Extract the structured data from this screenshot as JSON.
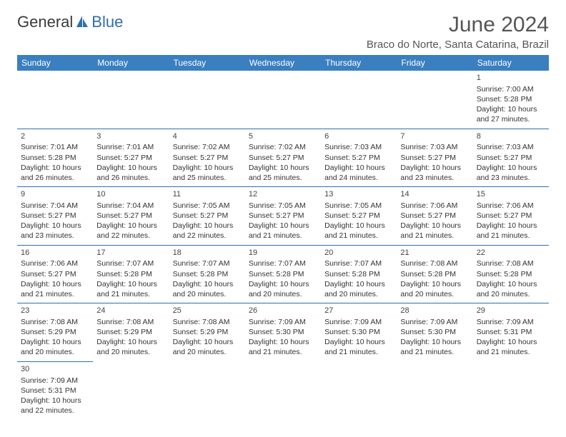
{
  "brand": {
    "part1": "General",
    "part2": "Blue"
  },
  "title": "June 2024",
  "location": "Braco do Norte, Santa Catarina, Brazil",
  "colors": {
    "header_bg": "#3a7fc0",
    "header_text": "#ffffff",
    "divider": "#2e6fb0",
    "text": "#333333",
    "title_text": "#555555",
    "background": "#ffffff"
  },
  "weekdays": [
    "Sunday",
    "Monday",
    "Tuesday",
    "Wednesday",
    "Thursday",
    "Friday",
    "Saturday"
  ],
  "weeks": [
    [
      {
        "day": "",
        "sunrise": "",
        "sunset": "",
        "daylight1": "",
        "daylight2": ""
      },
      {
        "day": "",
        "sunrise": "",
        "sunset": "",
        "daylight1": "",
        "daylight2": ""
      },
      {
        "day": "",
        "sunrise": "",
        "sunset": "",
        "daylight1": "",
        "daylight2": ""
      },
      {
        "day": "",
        "sunrise": "",
        "sunset": "",
        "daylight1": "",
        "daylight2": ""
      },
      {
        "day": "",
        "sunrise": "",
        "sunset": "",
        "daylight1": "",
        "daylight2": ""
      },
      {
        "day": "",
        "sunrise": "",
        "sunset": "",
        "daylight1": "",
        "daylight2": ""
      },
      {
        "day": "1",
        "sunrise": "Sunrise: 7:00 AM",
        "sunset": "Sunset: 5:28 PM",
        "daylight1": "Daylight: 10 hours",
        "daylight2": "and 27 minutes."
      }
    ],
    [
      {
        "day": "2",
        "sunrise": "Sunrise: 7:01 AM",
        "sunset": "Sunset: 5:28 PM",
        "daylight1": "Daylight: 10 hours",
        "daylight2": "and 26 minutes."
      },
      {
        "day": "3",
        "sunrise": "Sunrise: 7:01 AM",
        "sunset": "Sunset: 5:27 PM",
        "daylight1": "Daylight: 10 hours",
        "daylight2": "and 26 minutes."
      },
      {
        "day": "4",
        "sunrise": "Sunrise: 7:02 AM",
        "sunset": "Sunset: 5:27 PM",
        "daylight1": "Daylight: 10 hours",
        "daylight2": "and 25 minutes."
      },
      {
        "day": "5",
        "sunrise": "Sunrise: 7:02 AM",
        "sunset": "Sunset: 5:27 PM",
        "daylight1": "Daylight: 10 hours",
        "daylight2": "and 25 minutes."
      },
      {
        "day": "6",
        "sunrise": "Sunrise: 7:03 AM",
        "sunset": "Sunset: 5:27 PM",
        "daylight1": "Daylight: 10 hours",
        "daylight2": "and 24 minutes."
      },
      {
        "day": "7",
        "sunrise": "Sunrise: 7:03 AM",
        "sunset": "Sunset: 5:27 PM",
        "daylight1": "Daylight: 10 hours",
        "daylight2": "and 23 minutes."
      },
      {
        "day": "8",
        "sunrise": "Sunrise: 7:03 AM",
        "sunset": "Sunset: 5:27 PM",
        "daylight1": "Daylight: 10 hours",
        "daylight2": "and 23 minutes."
      }
    ],
    [
      {
        "day": "9",
        "sunrise": "Sunrise: 7:04 AM",
        "sunset": "Sunset: 5:27 PM",
        "daylight1": "Daylight: 10 hours",
        "daylight2": "and 23 minutes."
      },
      {
        "day": "10",
        "sunrise": "Sunrise: 7:04 AM",
        "sunset": "Sunset: 5:27 PM",
        "daylight1": "Daylight: 10 hours",
        "daylight2": "and 22 minutes."
      },
      {
        "day": "11",
        "sunrise": "Sunrise: 7:05 AM",
        "sunset": "Sunset: 5:27 PM",
        "daylight1": "Daylight: 10 hours",
        "daylight2": "and 22 minutes."
      },
      {
        "day": "12",
        "sunrise": "Sunrise: 7:05 AM",
        "sunset": "Sunset: 5:27 PM",
        "daylight1": "Daylight: 10 hours",
        "daylight2": "and 21 minutes."
      },
      {
        "day": "13",
        "sunrise": "Sunrise: 7:05 AM",
        "sunset": "Sunset: 5:27 PM",
        "daylight1": "Daylight: 10 hours",
        "daylight2": "and 21 minutes."
      },
      {
        "day": "14",
        "sunrise": "Sunrise: 7:06 AM",
        "sunset": "Sunset: 5:27 PM",
        "daylight1": "Daylight: 10 hours",
        "daylight2": "and 21 minutes."
      },
      {
        "day": "15",
        "sunrise": "Sunrise: 7:06 AM",
        "sunset": "Sunset: 5:27 PM",
        "daylight1": "Daylight: 10 hours",
        "daylight2": "and 21 minutes."
      }
    ],
    [
      {
        "day": "16",
        "sunrise": "Sunrise: 7:06 AM",
        "sunset": "Sunset: 5:27 PM",
        "daylight1": "Daylight: 10 hours",
        "daylight2": "and 21 minutes."
      },
      {
        "day": "17",
        "sunrise": "Sunrise: 7:07 AM",
        "sunset": "Sunset: 5:28 PM",
        "daylight1": "Daylight: 10 hours",
        "daylight2": "and 21 minutes."
      },
      {
        "day": "18",
        "sunrise": "Sunrise: 7:07 AM",
        "sunset": "Sunset: 5:28 PM",
        "daylight1": "Daylight: 10 hours",
        "daylight2": "and 20 minutes."
      },
      {
        "day": "19",
        "sunrise": "Sunrise: 7:07 AM",
        "sunset": "Sunset: 5:28 PM",
        "daylight1": "Daylight: 10 hours",
        "daylight2": "and 20 minutes."
      },
      {
        "day": "20",
        "sunrise": "Sunrise: 7:07 AM",
        "sunset": "Sunset: 5:28 PM",
        "daylight1": "Daylight: 10 hours",
        "daylight2": "and 20 minutes."
      },
      {
        "day": "21",
        "sunrise": "Sunrise: 7:08 AM",
        "sunset": "Sunset: 5:28 PM",
        "daylight1": "Daylight: 10 hours",
        "daylight2": "and 20 minutes."
      },
      {
        "day": "22",
        "sunrise": "Sunrise: 7:08 AM",
        "sunset": "Sunset: 5:28 PM",
        "daylight1": "Daylight: 10 hours",
        "daylight2": "and 20 minutes."
      }
    ],
    [
      {
        "day": "23",
        "sunrise": "Sunrise: 7:08 AM",
        "sunset": "Sunset: 5:29 PM",
        "daylight1": "Daylight: 10 hours",
        "daylight2": "and 20 minutes."
      },
      {
        "day": "24",
        "sunrise": "Sunrise: 7:08 AM",
        "sunset": "Sunset: 5:29 PM",
        "daylight1": "Daylight: 10 hours",
        "daylight2": "and 20 minutes."
      },
      {
        "day": "25",
        "sunrise": "Sunrise: 7:08 AM",
        "sunset": "Sunset: 5:29 PM",
        "daylight1": "Daylight: 10 hours",
        "daylight2": "and 20 minutes."
      },
      {
        "day": "26",
        "sunrise": "Sunrise: 7:09 AM",
        "sunset": "Sunset: 5:30 PM",
        "daylight1": "Daylight: 10 hours",
        "daylight2": "and 21 minutes."
      },
      {
        "day": "27",
        "sunrise": "Sunrise: 7:09 AM",
        "sunset": "Sunset: 5:30 PM",
        "daylight1": "Daylight: 10 hours",
        "daylight2": "and 21 minutes."
      },
      {
        "day": "28",
        "sunrise": "Sunrise: 7:09 AM",
        "sunset": "Sunset: 5:30 PM",
        "daylight1": "Daylight: 10 hours",
        "daylight2": "and 21 minutes."
      },
      {
        "day": "29",
        "sunrise": "Sunrise: 7:09 AM",
        "sunset": "Sunset: 5:31 PM",
        "daylight1": "Daylight: 10 hours",
        "daylight2": "and 21 minutes."
      }
    ],
    [
      {
        "day": "30",
        "sunrise": "Sunrise: 7:09 AM",
        "sunset": "Sunset: 5:31 PM",
        "daylight1": "Daylight: 10 hours",
        "daylight2": "and 22 minutes."
      },
      {
        "day": "",
        "sunrise": "",
        "sunset": "",
        "daylight1": "",
        "daylight2": ""
      },
      {
        "day": "",
        "sunrise": "",
        "sunset": "",
        "daylight1": "",
        "daylight2": ""
      },
      {
        "day": "",
        "sunrise": "",
        "sunset": "",
        "daylight1": "",
        "daylight2": ""
      },
      {
        "day": "",
        "sunrise": "",
        "sunset": "",
        "daylight1": "",
        "daylight2": ""
      },
      {
        "day": "",
        "sunrise": "",
        "sunset": "",
        "daylight1": "",
        "daylight2": ""
      },
      {
        "day": "",
        "sunrise": "",
        "sunset": "",
        "daylight1": "",
        "daylight2": ""
      }
    ]
  ]
}
